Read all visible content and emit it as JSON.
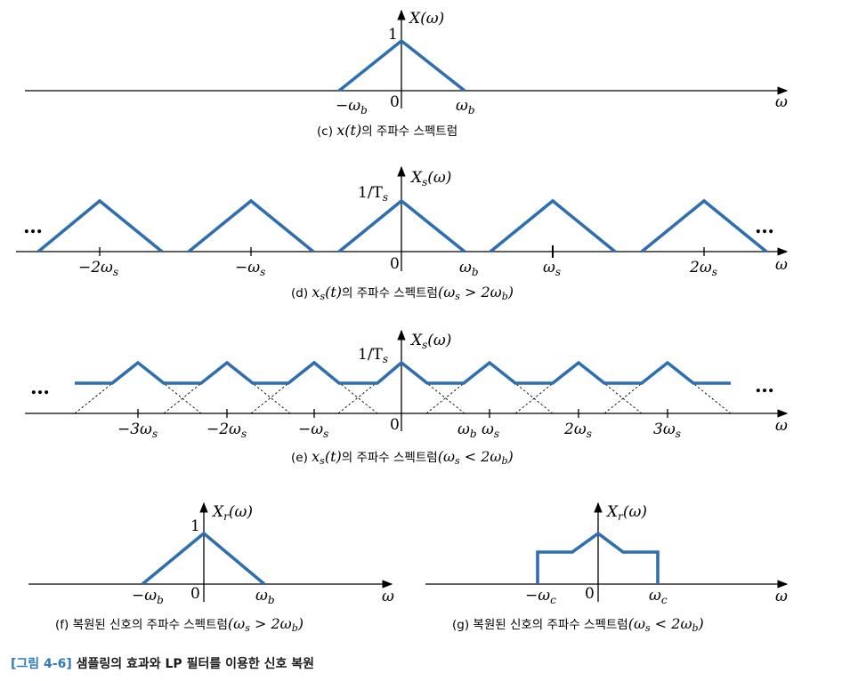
{
  "colors": {
    "signal": "#2f6fb0",
    "axis": "#000000",
    "tag": "#2f7bbf",
    "dashed": "#000000"
  },
  "panels": {
    "c": {
      "ylabel": "X(ω)",
      "peak": "1",
      "ticks": [
        "−ω",
        "0",
        "ω"
      ],
      "tick_subs": [
        "b",
        "",
        "b"
      ],
      "xlabel": "ω",
      "caption_pre": "(c) ",
      "caption_math": "x(t)",
      "caption_post": "의 주파수 스펙트럼"
    },
    "d": {
      "ylabel": "X",
      "ylabel_sub": "s",
      "ylabel_tail": "(ω)",
      "peak": "1/T",
      "peak_sub": "s",
      "ellipsis_left": "…",
      "ellipsis_right": "…",
      "ticks": [
        {
          "label": "−2ω",
          "sub": "s"
        },
        {
          "label": "−ω",
          "sub": "s"
        },
        {
          "label": "0",
          "sub": ""
        },
        {
          "label": "ω",
          "sub": "b"
        },
        {
          "label": "ω",
          "sub": "s"
        },
        {
          "label": "2ω",
          "sub": "s"
        }
      ],
      "xlabel": "ω",
      "caption_pre": "(d) ",
      "caption_math": "x",
      "caption_math_sub": "s",
      "caption_math_tail": "(t)",
      "caption_post": "의 주파수 스펙트럼",
      "caption_cond": "(ω",
      "caption_cond_sub": "s",
      "caption_cond_tail": " > 2ω",
      "caption_cond_sub2": "b",
      "caption_cond_end": ")"
    },
    "e": {
      "ylabel": "X",
      "ylabel_sub": "s",
      "ylabel_tail": "(ω)",
      "peak": "1/T",
      "peak_sub": "s",
      "ellipsis_left": "…",
      "ellipsis_right": "…",
      "ticks": [
        {
          "label": "−3ω",
          "sub": "s"
        },
        {
          "label": "−2ω",
          "sub": "s"
        },
        {
          "label": "−ω",
          "sub": "s"
        },
        {
          "label": "0",
          "sub": ""
        },
        {
          "label": "ω",
          "sub": "b"
        },
        {
          "label": "ω",
          "sub": "s"
        },
        {
          "label": "2ω",
          "sub": "s"
        },
        {
          "label": "3ω",
          "sub": "s"
        }
      ],
      "xlabel": "ω",
      "caption_pre": "(e) ",
      "caption_math": "x",
      "caption_math_sub": "s",
      "caption_math_tail": "(t)",
      "caption_post": "의 주파수 스펙트럼",
      "caption_cond": "(ω",
      "caption_cond_sub": "s",
      "caption_cond_tail": " < 2ω",
      "caption_cond_sub2": "b",
      "caption_cond_end": ")"
    },
    "f": {
      "ylabel": "X",
      "ylabel_sub": "r",
      "ylabel_tail": "(ω)",
      "peak": "1",
      "ticks": [
        {
          "label": "−ω",
          "sub": "b"
        },
        {
          "label": "0",
          "sub": ""
        },
        {
          "label": "ω",
          "sub": "b"
        }
      ],
      "xlabel": "ω",
      "caption_pre": "(f) 복원된 신호의 주파수 스펙트럼",
      "caption_cond": "(ω",
      "caption_cond_sub": "s",
      "caption_cond_tail": " > 2ω",
      "caption_cond_sub2": "b",
      "caption_cond_end": ")"
    },
    "g": {
      "ylabel": "X",
      "ylabel_sub": "r",
      "ylabel_tail": "(ω)",
      "ticks": [
        {
          "label": "−ω",
          "sub": "c"
        },
        {
          "label": "0",
          "sub": ""
        },
        {
          "label": "ω",
          "sub": "c"
        }
      ],
      "xlabel": "ω",
      "caption_pre": "(g) 복원된 신호의 주파수 스펙트럼",
      "caption_cond": "(ω",
      "caption_cond_sub": "s",
      "caption_cond_tail": " < 2ω",
      "caption_cond_sub2": "b",
      "caption_cond_end": ")"
    }
  },
  "figure_caption": {
    "tag": "[그림 4-6]",
    "text": " 샘플링의 효과와 LP 필터를 이용한 신호 복원"
  }
}
